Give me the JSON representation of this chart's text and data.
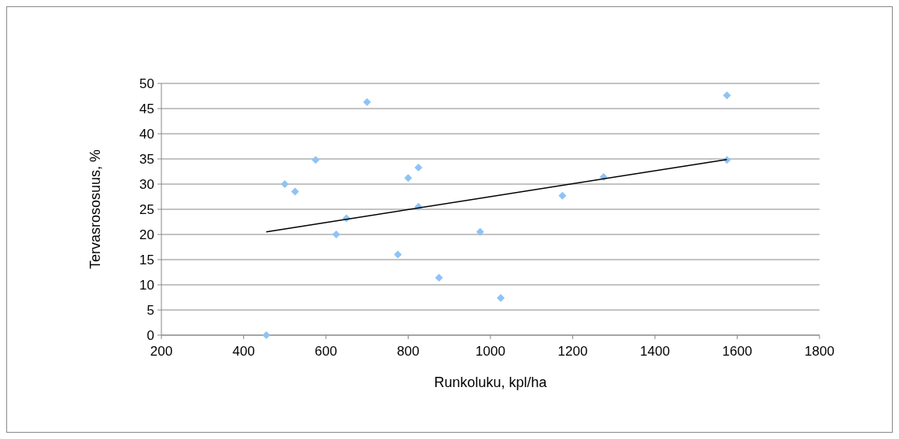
{
  "chart_data": {
    "type": "scatter",
    "xlabel": "Runkoluku, kpl/ha",
    "ylabel": "Tervasrososuus, %",
    "xlim": [
      200,
      1800
    ],
    "xticks": [
      200,
      400,
      600,
      800,
      1000,
      1200,
      1400,
      1600,
      1800
    ],
    "ylim": [
      0,
      50
    ],
    "yticks": [
      0,
      5,
      10,
      15,
      20,
      25,
      30,
      35,
      40,
      45,
      50
    ],
    "grid": "y",
    "marker": "diamond",
    "series": [
      {
        "color": "#8fc3f5",
        "x": [
          455,
          500,
          525,
          575,
          625,
          650,
          700,
          775,
          800,
          825,
          825,
          875,
          975,
          1025,
          1175,
          1275,
          1575,
          1575
        ],
        "values": [
          0,
          30.0,
          28.5,
          34.8,
          20.0,
          23.2,
          46.3,
          16.0,
          31.2,
          33.3,
          25.5,
          11.4,
          20.5,
          7.4,
          27.7,
          31.4,
          47.6,
          34.8
        ]
      },
      {
        "type": "line",
        "color": "#000000",
        "marker": "none",
        "x": [
          455,
          1575
        ],
        "values": [
          20.5,
          34.9
        ]
      }
    ]
  }
}
